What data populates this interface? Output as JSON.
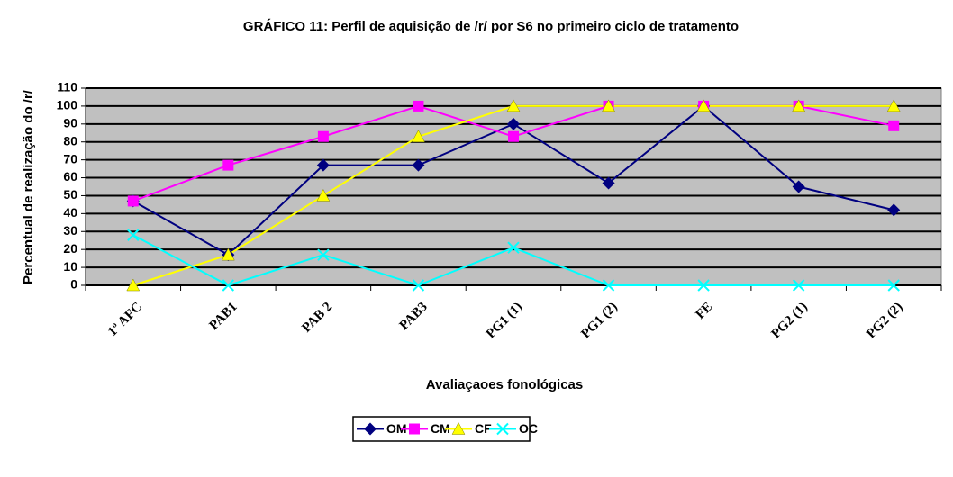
{
  "chart_data": {
    "type": "line",
    "title": "GRÁFICO 11: Perfil de aquisição de /r/ por S6 no primeiro ciclo de tratamento",
    "xlabel": "Avaliaçaoes fonológicas",
    "ylabel": "Percentual de realização do /r/",
    "categories": [
      "1º AFC",
      "PAB1",
      "PAB 2",
      "PAB3",
      "PG1 (1)",
      "PG1 (2)",
      "FE",
      "PG2 (1)",
      "PG2 (2)"
    ],
    "series": [
      {
        "name": "OM",
        "color": "#000080",
        "marker": "diamond",
        "values": [
          47,
          17,
          67,
          67,
          90,
          57,
          100,
          55,
          42
        ]
      },
      {
        "name": "CM",
        "color": "#ff00ff",
        "marker": "square",
        "values": [
          47,
          67,
          83,
          100,
          83,
          100,
          100,
          100,
          89
        ]
      },
      {
        "name": "CF",
        "color": "#ffff00",
        "marker": "triangle",
        "values": [
          0,
          17,
          50,
          83,
          100,
          100,
          100,
          100,
          100
        ]
      },
      {
        "name": "OC",
        "color": "#00ffff",
        "marker": "x",
        "values": [
          28,
          0,
          17,
          0,
          21,
          0,
          0,
          0,
          0
        ]
      }
    ],
    "ylim": [
      0,
      110
    ],
    "yticks": [
      0,
      10,
      20,
      30,
      40,
      50,
      60,
      70,
      80,
      90,
      100,
      110
    ],
    "grid": true,
    "legend": "bottom"
  }
}
